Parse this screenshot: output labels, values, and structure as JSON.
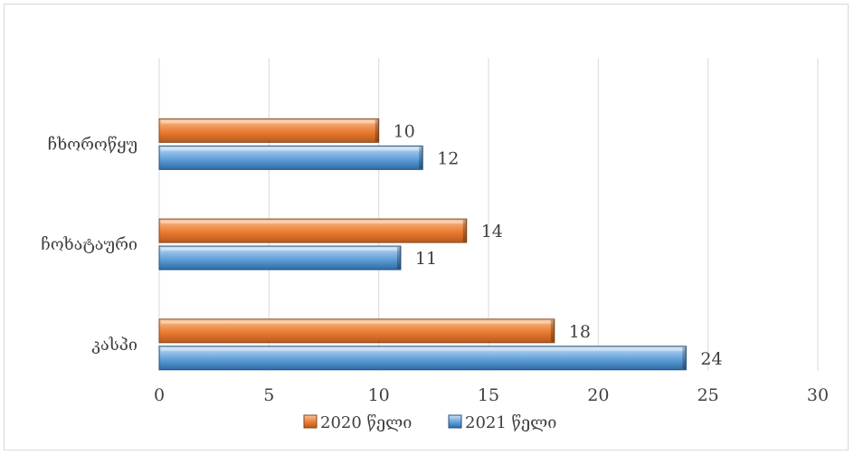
{
  "chart_data": {
    "type": "bar",
    "orientation": "horizontal",
    "categories": [
      "ჩხოროწყუ",
      "ჩოხატაური",
      "კასპი"
    ],
    "series": [
      {
        "name": "2020 წელი",
        "values": [
          10,
          14,
          18
        ],
        "color": "#ed7d31"
      },
      {
        "name": "2021 წელი",
        "values": [
          12,
          11,
          24
        ],
        "color": "#5b9bd5"
      }
    ],
    "xlim": [
      0,
      30
    ],
    "xticks": [
      0,
      5,
      10,
      15,
      20,
      25,
      30
    ],
    "grid": "vertical",
    "legend": "bottom",
    "data_labels": true,
    "title": "",
    "xlabel": "",
    "ylabel": ""
  }
}
